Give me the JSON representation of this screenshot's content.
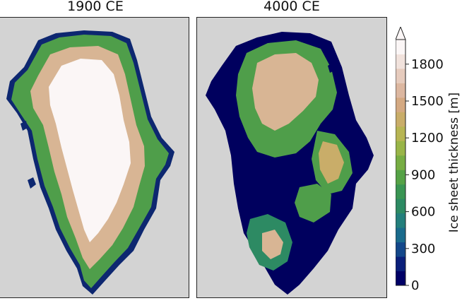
{
  "panels": [
    {
      "title": "1900 CE"
    },
    {
      "title": "4000 CE"
    }
  ],
  "colorbar": {
    "label": "Ice sheet thickness [m]",
    "ticks": [
      "0",
      "300",
      "600",
      "900",
      "1200",
      "1500",
      "1800"
    ],
    "tick_values": [
      0,
      300,
      600,
      900,
      1200,
      1500,
      1800
    ],
    "range": [
      0,
      2000
    ],
    "extend": "max",
    "colormap": "gist_earth",
    "colors": [
      "#000066",
      "#0a1f7a",
      "#13478a",
      "#1a6b8c",
      "#237f7c",
      "#2d8a63",
      "#3a9553",
      "#55a246",
      "#77ad43",
      "#99b548",
      "#b7b553",
      "#c9ad69",
      "#d4a982",
      "#dcb7a0",
      "#e6cbbd",
      "#f1e2dc",
      "#fbf6f6"
    ]
  },
  "map": {
    "background_color": "#d3d3d3",
    "ocean_label": "",
    "ice_high_color": "#fbf6f6",
    "ice_mid_color": "#d8b594",
    "ice_low_color": "#4f9e4a",
    "ice_edge_color": "#0d2770",
    "ice_free_color": "#00005e"
  }
}
